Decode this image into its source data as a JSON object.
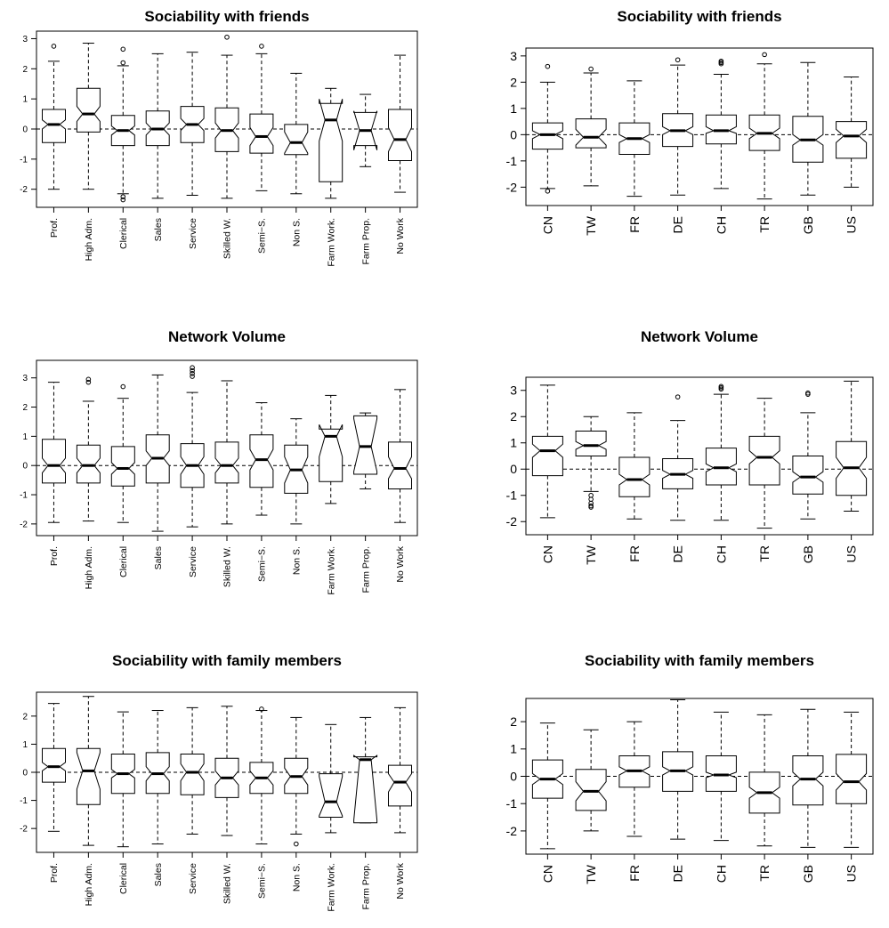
{
  "chart_data": [
    {
      "type": "boxplot",
      "title": "Sociability with friends",
      "categories": [
        "Prof.",
        "High Adm.",
        "Clerical",
        "Sales",
        "Service",
        "Skilled W.",
        "Semi−S.",
        "Non S.",
        "Farm Work.",
        "Farm Prop.",
        "No Work"
      ],
      "yticks": [
        -2,
        -1,
        0,
        1,
        2,
        3
      ],
      "ylim": [
        -2.6,
        3.25
      ],
      "reference_line": 0,
      "notched": true,
      "boxes": [
        {
          "whisker_low": -2.0,
          "q1": -0.45,
          "median": 0.15,
          "q3": 0.65,
          "whisker_high": 2.25,
          "notch": [
            0.0,
            0.3
          ],
          "outliers": [
            2.75
          ]
        },
        {
          "whisker_low": -2.0,
          "q1": -0.1,
          "median": 0.5,
          "q3": 1.35,
          "whisker_high": 2.85,
          "notch": [
            0.25,
            0.75
          ],
          "outliers": []
        },
        {
          "whisker_low": -2.15,
          "q1": -0.55,
          "median": -0.05,
          "q3": 0.45,
          "whisker_high": 2.1,
          "notch": [
            -0.2,
            0.1
          ],
          "outliers": [
            2.65,
            2.2,
            -2.25,
            -2.35
          ]
        },
        {
          "whisker_low": -2.3,
          "q1": -0.55,
          "median": 0.0,
          "q3": 0.6,
          "whisker_high": 2.5,
          "notch": [
            -0.2,
            0.2
          ],
          "outliers": []
        },
        {
          "whisker_low": -2.2,
          "q1": -0.45,
          "median": 0.15,
          "q3": 0.75,
          "whisker_high": 2.55,
          "notch": [
            -0.05,
            0.35
          ],
          "outliers": []
        },
        {
          "whisker_low": -2.3,
          "q1": -0.75,
          "median": -0.05,
          "q3": 0.7,
          "whisker_high": 2.45,
          "notch": [
            -0.3,
            0.2
          ],
          "outliers": [
            3.05
          ]
        },
        {
          "whisker_low": -2.05,
          "q1": -0.8,
          "median": -0.25,
          "q3": 0.5,
          "whisker_high": 2.5,
          "notch": [
            -0.55,
            0.05
          ],
          "outliers": [
            2.75
          ]
        },
        {
          "whisker_low": -2.15,
          "q1": -0.85,
          "median": -0.45,
          "q3": 0.15,
          "whisker_high": 1.85,
          "notch": [
            -0.8,
            -0.1
          ],
          "outliers": []
        },
        {
          "whisker_low": -2.3,
          "q1": -1.75,
          "median": 0.3,
          "q3": 0.85,
          "whisker_high": 1.35,
          "notch": [
            -0.4,
            1.0
          ],
          "outliers": []
        },
        {
          "whisker_low": -1.25,
          "q1": -0.55,
          "median": -0.05,
          "q3": 0.55,
          "whisker_high": 1.15,
          "notch": [
            -0.7,
            0.6
          ],
          "outliers": []
        },
        {
          "whisker_low": -2.1,
          "q1": -1.05,
          "median": -0.35,
          "q3": 0.65,
          "whisker_high": 2.45,
          "notch": [
            -0.75,
            0.05
          ],
          "outliers": []
        }
      ]
    },
    {
      "type": "boxplot",
      "title": "Sociability with friends",
      "categories": [
        "CN",
        "TW",
        "FR",
        "DE",
        "CH",
        "TR",
        "GB",
        "US"
      ],
      "yticks": [
        -2,
        -1,
        0,
        1,
        2,
        3
      ],
      "ylim": [
        -2.7,
        3.3
      ],
      "reference_line": 0,
      "notched": true,
      "boxes": [
        {
          "whisker_low": -2.05,
          "q1": -0.55,
          "median": 0.0,
          "q3": 0.45,
          "whisker_high": 2.0,
          "notch": [
            -0.15,
            0.15
          ],
          "outliers": [
            2.6,
            -2.15
          ]
        },
        {
          "whisker_low": -1.95,
          "q1": -0.5,
          "median": -0.1,
          "q3": 0.6,
          "whisker_high": 2.35,
          "notch": [
            -0.4,
            0.2
          ],
          "outliers": [
            2.5
          ]
        },
        {
          "whisker_low": -2.35,
          "q1": -0.75,
          "median": -0.15,
          "q3": 0.45,
          "whisker_high": 2.05,
          "notch": [
            -0.3,
            0.0
          ],
          "outliers": []
        },
        {
          "whisker_low": -2.3,
          "q1": -0.45,
          "median": 0.15,
          "q3": 0.8,
          "whisker_high": 2.65,
          "notch": [
            0.0,
            0.3
          ],
          "outliers": [
            2.85
          ]
        },
        {
          "whisker_low": -2.05,
          "q1": -0.35,
          "median": 0.15,
          "q3": 0.75,
          "whisker_high": 2.3,
          "notch": [
            0.05,
            0.3
          ],
          "outliers": [
            2.75,
            2.8,
            2.7
          ]
        },
        {
          "whisker_low": -2.45,
          "q1": -0.6,
          "median": 0.05,
          "q3": 0.75,
          "whisker_high": 2.7,
          "notch": [
            -0.15,
            0.25
          ],
          "outliers": [
            3.05
          ]
        },
        {
          "whisker_low": -2.3,
          "q1": -1.05,
          "median": -0.2,
          "q3": 0.7,
          "whisker_high": 2.75,
          "notch": [
            -0.4,
            0.0
          ],
          "outliers": []
        },
        {
          "whisker_low": -2.0,
          "q1": -0.9,
          "median": -0.05,
          "q3": 0.5,
          "whisker_high": 2.2,
          "notch": [
            -0.3,
            0.2
          ],
          "outliers": []
        }
      ]
    },
    {
      "type": "boxplot",
      "title": "Network Volume",
      "categories": [
        "Prof.",
        "High Adm.",
        "Clerical",
        "Sales",
        "Service",
        "Skilled W.",
        "Semi−S.",
        "Non S.",
        "Farm Work.",
        "Farm Prop.",
        "No Work"
      ],
      "yticks": [
        -2,
        -1,
        0,
        1,
        2,
        3
      ],
      "ylim": [
        -2.4,
        3.6
      ],
      "reference_line": 0,
      "notched": true,
      "boxes": [
        {
          "whisker_low": -1.95,
          "q1": -0.6,
          "median": 0.0,
          "q3": 0.9,
          "whisker_high": 2.85,
          "notch": [
            -0.25,
            0.25
          ],
          "outliers": []
        },
        {
          "whisker_low": -1.9,
          "q1": -0.6,
          "median": 0.0,
          "q3": 0.7,
          "whisker_high": 2.2,
          "notch": [
            -0.25,
            0.25
          ],
          "outliers": [
            2.85,
            2.95
          ]
        },
        {
          "whisker_low": -1.95,
          "q1": -0.7,
          "median": -0.1,
          "q3": 0.65,
          "whisker_high": 2.3,
          "notch": [
            -0.3,
            0.1
          ],
          "outliers": [
            2.7
          ]
        },
        {
          "whisker_low": -2.25,
          "q1": -0.6,
          "median": 0.25,
          "q3": 1.05,
          "whisker_high": 3.1,
          "notch": [
            0.0,
            0.5
          ],
          "outliers": []
        },
        {
          "whisker_low": -2.1,
          "q1": -0.75,
          "median": 0.0,
          "q3": 0.75,
          "whisker_high": 2.5,
          "notch": [
            -0.3,
            0.3
          ],
          "outliers": [
            3.15,
            3.25,
            3.35,
            3.05
          ]
        },
        {
          "whisker_low": -2.0,
          "q1": -0.6,
          "median": 0.0,
          "q3": 0.8,
          "whisker_high": 2.9,
          "notch": [
            -0.25,
            0.25
          ],
          "outliers": []
        },
        {
          "whisker_low": -1.7,
          "q1": -0.75,
          "median": 0.2,
          "q3": 1.05,
          "whisker_high": 2.15,
          "notch": [
            -0.15,
            0.55
          ],
          "outliers": []
        },
        {
          "whisker_low": -2.0,
          "q1": -0.95,
          "median": -0.15,
          "q3": 0.7,
          "whisker_high": 1.6,
          "notch": [
            -0.6,
            0.3
          ],
          "outliers": []
        },
        {
          "whisker_low": -1.3,
          "q1": -0.55,
          "median": 1.0,
          "q3": 1.25,
          "whisker_high": 2.4,
          "notch": [
            0.3,
            1.4
          ],
          "outliers": []
        },
        {
          "whisker_low": -0.8,
          "q1": -0.3,
          "median": 0.65,
          "q3": 1.7,
          "whisker_high": 1.8,
          "notch": [
            -0.2,
            1.6
          ],
          "outliers": []
        },
        {
          "whisker_low": -1.95,
          "q1": -0.8,
          "median": -0.1,
          "q3": 0.8,
          "whisker_high": 2.6,
          "notch": [
            -0.45,
            0.3
          ],
          "outliers": []
        }
      ]
    },
    {
      "type": "boxplot",
      "title": "Network Volume",
      "categories": [
        "CN",
        "TW",
        "FR",
        "DE",
        "CH",
        "TR",
        "GB",
        "US"
      ],
      "yticks": [
        -2,
        -1,
        0,
        1,
        2,
        3
      ],
      "ylim": [
        -2.5,
        3.5
      ],
      "reference_line": 0,
      "notched": true,
      "boxes": [
        {
          "whisker_low": -1.85,
          "q1": -0.25,
          "median": 0.7,
          "q3": 1.25,
          "whisker_high": 3.2,
          "notch": [
            0.45,
            0.95
          ],
          "outliers": []
        },
        {
          "whisker_low": -0.85,
          "q1": 0.5,
          "median": 0.9,
          "q3": 1.45,
          "whisker_high": 2.0,
          "notch": [
            0.75,
            1.05
          ],
          "outliers": [
            -1.0,
            -1.15,
            -1.3,
            -1.4,
            -1.45
          ]
        },
        {
          "whisker_low": -1.9,
          "q1": -1.05,
          "median": -0.4,
          "q3": 0.45,
          "whisker_high": 2.15,
          "notch": [
            -0.6,
            -0.2
          ],
          "outliers": []
        },
        {
          "whisker_low": -1.95,
          "q1": -0.75,
          "median": -0.2,
          "q3": 0.4,
          "whisker_high": 1.85,
          "notch": [
            -0.35,
            -0.05
          ],
          "outliers": [
            2.75
          ]
        },
        {
          "whisker_low": -1.95,
          "q1": -0.6,
          "median": 0.05,
          "q3": 0.8,
          "whisker_high": 2.85,
          "notch": [
            -0.1,
            0.2
          ],
          "outliers": [
            3.05,
            3.15,
            3.1
          ]
        },
        {
          "whisker_low": -2.25,
          "q1": -0.6,
          "median": 0.45,
          "q3": 1.25,
          "whisker_high": 2.7,
          "notch": [
            0.2,
            0.7
          ],
          "outliers": []
        },
        {
          "whisker_low": -1.9,
          "q1": -0.95,
          "median": -0.3,
          "q3": 0.5,
          "whisker_high": 2.15,
          "notch": [
            -0.5,
            -0.1
          ],
          "outliers": [
            2.85,
            2.9
          ]
        },
        {
          "whisker_low": -1.6,
          "q1": -1.0,
          "median": 0.05,
          "q3": 1.05,
          "whisker_high": 3.35,
          "notch": [
            -0.35,
            0.45
          ],
          "outliers": []
        }
      ]
    },
    {
      "type": "boxplot",
      "title": "Sociability with family members",
      "categories": [
        "Prof.",
        "High Adm.",
        "Clerical",
        "Sales",
        "Service",
        "Skilled W.",
        "Semi−S.",
        "Non S.",
        "Farm Work.",
        "Farm Prop.",
        "No Work"
      ],
      "yticks": [
        -2,
        -1,
        0,
        1,
        2
      ],
      "ylim": [
        -2.85,
        2.85
      ],
      "reference_line": 0,
      "notched": true,
      "boxes": [
        {
          "whisker_low": -2.1,
          "q1": -0.35,
          "median": 0.2,
          "q3": 0.85,
          "whisker_high": 2.45,
          "notch": [
            0.05,
            0.35
          ],
          "outliers": []
        },
        {
          "whisker_low": -2.6,
          "q1": -1.15,
          "median": 0.05,
          "q3": 0.85,
          "whisker_high": 2.7,
          "notch": [
            -0.6,
            0.7
          ],
          "outliers": []
        },
        {
          "whisker_low": -2.65,
          "q1": -0.75,
          "median": -0.05,
          "q3": 0.65,
          "whisker_high": 2.15,
          "notch": [
            -0.2,
            0.1
          ],
          "outliers": []
        },
        {
          "whisker_low": -2.55,
          "q1": -0.75,
          "median": -0.05,
          "q3": 0.7,
          "whisker_high": 2.2,
          "notch": [
            -0.3,
            0.2
          ],
          "outliers": []
        },
        {
          "whisker_low": -2.2,
          "q1": -0.8,
          "median": 0.0,
          "q3": 0.65,
          "whisker_high": 2.3,
          "notch": [
            -0.3,
            0.3
          ],
          "outliers": []
        },
        {
          "whisker_low": -2.25,
          "q1": -0.9,
          "median": -0.2,
          "q3": 0.5,
          "whisker_high": 2.35,
          "notch": [
            -0.45,
            0.05
          ],
          "outliers": []
        },
        {
          "whisker_low": -2.55,
          "q1": -0.75,
          "median": -0.2,
          "q3": 0.35,
          "whisker_high": 2.2,
          "notch": [
            -0.45,
            0.05
          ],
          "outliers": [
            2.25
          ]
        },
        {
          "whisker_low": -2.2,
          "q1": -0.75,
          "median": -0.15,
          "q3": 0.5,
          "whisker_high": 1.95,
          "notch": [
            -0.45,
            0.15
          ],
          "outliers": [
            -2.55
          ]
        },
        {
          "whisker_low": -2.15,
          "q1": -1.6,
          "median": -1.05,
          "q3": -0.05,
          "whisker_high": 1.7,
          "notch": [
            -1.55,
            -0.15
          ],
          "outliers": []
        },
        {
          "whisker_low": -1.8,
          "q1": -1.8,
          "median": 0.45,
          "q3": 0.55,
          "whisker_high": 1.95,
          "notch": [
            -1.7,
            0.6
          ],
          "outliers": []
        },
        {
          "whisker_low": -2.15,
          "q1": -1.2,
          "median": -0.35,
          "q3": 0.25,
          "whisker_high": 2.3,
          "notch": [
            -0.7,
            -0.05
          ],
          "outliers": []
        }
      ]
    },
    {
      "type": "boxplot",
      "title": "Sociability with family members",
      "categories": [
        "CN",
        "TW",
        "FR",
        "DE",
        "CH",
        "TR",
        "GB",
        "US"
      ],
      "yticks": [
        -2,
        -1,
        0,
        1,
        2
      ],
      "ylim": [
        -2.85,
        2.85
      ],
      "reference_line": 0,
      "notched": true,
      "boxes": [
        {
          "whisker_low": -2.65,
          "q1": -0.8,
          "median": -0.1,
          "q3": 0.6,
          "whisker_high": 1.95,
          "notch": [
            -0.3,
            0.1
          ],
          "outliers": []
        },
        {
          "whisker_low": -2.0,
          "q1": -1.25,
          "median": -0.55,
          "q3": 0.25,
          "whisker_high": 1.7,
          "notch": [
            -0.9,
            -0.2
          ],
          "outliers": []
        },
        {
          "whisker_low": -2.2,
          "q1": -0.4,
          "median": 0.2,
          "q3": 0.75,
          "whisker_high": 2.0,
          "notch": [
            0.05,
            0.35
          ],
          "outliers": []
        },
        {
          "whisker_low": -2.3,
          "q1": -0.55,
          "median": 0.2,
          "q3": 0.9,
          "whisker_high": 2.8,
          "notch": [
            0.05,
            0.35
          ],
          "outliers": []
        },
        {
          "whisker_low": -2.35,
          "q1": -0.55,
          "median": 0.05,
          "q3": 0.75,
          "whisker_high": 2.35,
          "notch": [
            -0.05,
            0.15
          ],
          "outliers": []
        },
        {
          "whisker_low": -2.55,
          "q1": -1.35,
          "median": -0.6,
          "q3": 0.15,
          "whisker_high": 2.25,
          "notch": [
            -0.8,
            -0.4
          ],
          "outliers": []
        },
        {
          "whisker_low": -2.6,
          "q1": -1.05,
          "median": -0.1,
          "q3": 0.75,
          "whisker_high": 2.45,
          "notch": [
            -0.35,
            0.15
          ],
          "outliers": []
        },
        {
          "whisker_low": -2.6,
          "q1": -1.0,
          "median": -0.2,
          "q3": 0.8,
          "whisker_high": 2.35,
          "notch": [
            -0.5,
            0.1
          ],
          "outliers": []
        }
      ]
    }
  ]
}
